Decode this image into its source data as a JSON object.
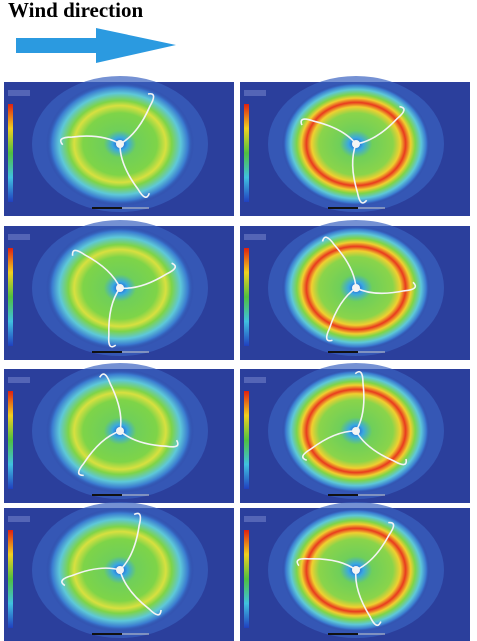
{
  "title": "Wind direction"
}
